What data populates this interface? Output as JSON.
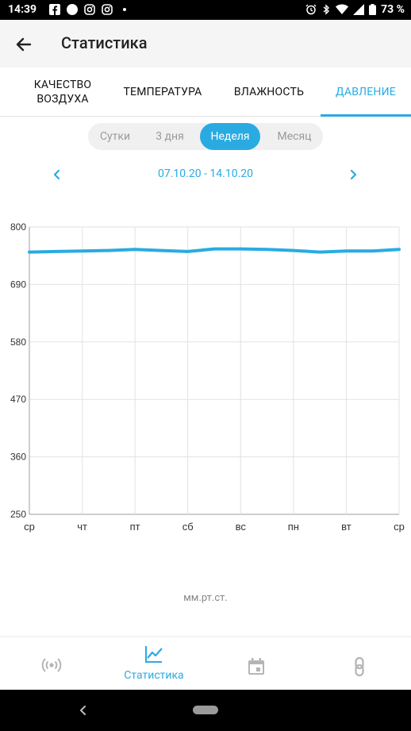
{
  "status_bar": {
    "time": "14:39",
    "battery": "73 %",
    "left_icons": [
      "facebook-icon",
      "circle-icon",
      "instagram-icon",
      "instagram-icon",
      "dot-icon"
    ],
    "right_icons": [
      "alarm-icon",
      "bluetooth-icon",
      "wifi-icon",
      "signal-icon",
      "battery-icon"
    ]
  },
  "app_bar": {
    "title": "Статистика"
  },
  "tabs": [
    {
      "label": "КАЧЕСТВО\nВОЗДУХА",
      "active": false
    },
    {
      "label": "ТЕМПЕРАТУРА",
      "active": false
    },
    {
      "label": "ВЛАЖНОСТЬ",
      "active": false
    },
    {
      "label": "ДАВЛЕНИЕ",
      "active": true
    }
  ],
  "period": {
    "options": [
      "Сутки",
      "3 дня",
      "Неделя",
      "Месяц"
    ],
    "selected": "Неделя"
  },
  "date_range": "07.10.20 - 14.10.20",
  "chart_data": {
    "type": "line",
    "x_categories": [
      "ср",
      "чт",
      "пт",
      "сб",
      "вс",
      "пн",
      "вт",
      "ср"
    ],
    "y_ticks": [
      800,
      690,
      580,
      470,
      360,
      250
    ],
    "ylim": [
      250,
      800
    ],
    "grid": true,
    "ylabel": "",
    "unit_label": "мм.рт.ст.",
    "color": "#29abe2",
    "series": [
      {
        "x": [
          0,
          0.5,
          1,
          1.5,
          2,
          2.5,
          3,
          3.5,
          4,
          4.5,
          5,
          5.5,
          6,
          6.5,
          7
        ],
        "values": [
          752,
          753,
          754,
          755,
          757,
          755,
          753,
          758,
          758,
          757,
          755,
          752,
          754,
          754,
          757
        ]
      }
    ]
  },
  "bottom_nav": [
    {
      "icon": "sensor-broadcast-icon",
      "label": "",
      "active": false
    },
    {
      "icon": "chart-line-icon",
      "label": "Статистика",
      "active": true
    },
    {
      "icon": "calendar-icon",
      "label": "",
      "active": false
    },
    {
      "icon": "link-icon",
      "label": "",
      "active": false
    }
  ]
}
